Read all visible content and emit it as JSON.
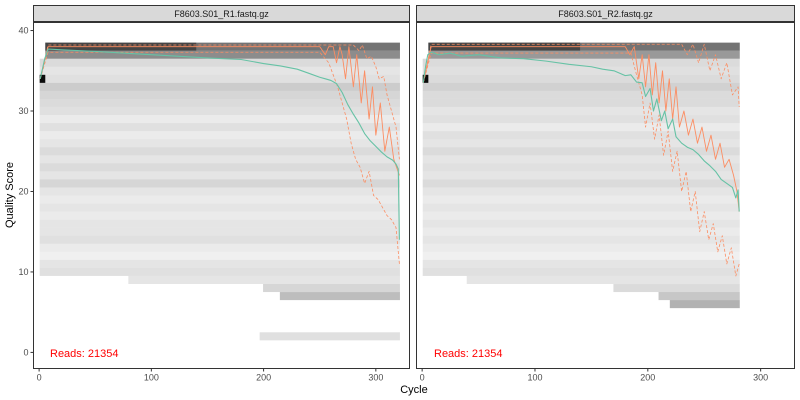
{
  "colors": {
    "strip_bg": "#d9d9d9",
    "strip_border": "#333333",
    "panel_border": "#333333",
    "mean_line": "#66c2a5",
    "quantile_line": "#fc8d62",
    "reads_text": "#ff0000",
    "heat_low": "#f4f4f4",
    "heat_high": "#000000"
  },
  "chart_data": {
    "type": "heatmap",
    "xlabel": "Cycle",
    "ylabel": "Quality Score",
    "xlim": [
      -5,
      330
    ],
    "ylim": [
      -2,
      41
    ],
    "xticks": [
      0,
      100,
      200,
      300
    ],
    "yticks": [
      0,
      10,
      20,
      30,
      40
    ],
    "panels": [
      {
        "title": "F8603.S01_R1.fastq.gz",
        "reads_label": "Reads:  21354",
        "read_length": 321,
        "mean": {
          "x": [
            1,
            5,
            8,
            20,
            50,
            100,
            150,
            180,
            200,
            215,
            230,
            240,
            250,
            255,
            260,
            265,
            270,
            275,
            280,
            285,
            290,
            295,
            300,
            305,
            310,
            315,
            318,
            320,
            321
          ],
          "y": [
            34,
            36.5,
            37.7,
            37.6,
            37.4,
            37.0,
            36.6,
            36.4,
            35.9,
            35.6,
            35.2,
            34.7,
            34.2,
            34.0,
            33.8,
            33.4,
            32.3,
            30.8,
            29.6,
            28.5,
            27.2,
            26.3,
            25.6,
            24.9,
            24.3,
            23.9,
            23.4,
            22.8,
            14
          ]
        },
        "median": {
          "x": [
            1,
            8,
            200,
            250,
            255,
            258,
            262,
            265,
            268,
            270,
            273,
            276,
            280,
            283,
            287,
            290,
            294,
            297,
            300,
            304,
            308,
            312,
            316,
            321
          ],
          "y": [
            34,
            38,
            38,
            38,
            37,
            38,
            38,
            36,
            38,
            37,
            34,
            38,
            33,
            37,
            31,
            35,
            29,
            33,
            27,
            31,
            25,
            28,
            24,
            22
          ]
        },
        "q25": {
          "x": [
            1,
            8,
            250,
            258,
            262,
            266,
            270,
            274,
            278,
            282,
            286,
            290,
            294,
            298,
            302,
            306,
            310,
            314,
            318,
            321
          ],
          "y": [
            34,
            37.3,
            37.3,
            36,
            34.5,
            33,
            31,
            29,
            26,
            24,
            23,
            21,
            22.5,
            19.5,
            19,
            18,
            17,
            16.5,
            15.5,
            11
          ]
        },
        "q75": {
          "x": [
            1,
            8,
            280,
            285,
            288,
            292,
            296,
            300,
            303,
            307,
            310,
            314,
            318,
            321
          ],
          "y": [
            34,
            38.2,
            38.2,
            37.5,
            38.2,
            36.5,
            36.8,
            35.5,
            34,
            34.3,
            32,
            30,
            28,
            24
          ]
        },
        "heat_cells": [
          {
            "q": 38,
            "x0": 6,
            "x1": 321,
            "a": 0.55
          },
          {
            "q": 37,
            "x0": 6,
            "x1": 321,
            "a": 0.45
          },
          {
            "q": 36,
            "x0": 1,
            "x1": 321,
            "a": 0.14
          },
          {
            "q": 35,
            "x0": 1,
            "x1": 321,
            "a": 0.1
          },
          {
            "q": 34,
            "x0": 1,
            "x1": 321,
            "a": 0.12
          },
          {
            "q": 33,
            "x0": 1,
            "x1": 321,
            "a": 0.2
          },
          {
            "q": 32,
            "x0": 1,
            "x1": 321,
            "a": 0.16
          },
          {
            "q": 31,
            "x0": 1,
            "x1": 321,
            "a": 0.14
          },
          {
            "q": 30,
            "x0": 1,
            "x1": 321,
            "a": 0.12
          },
          {
            "q": 29,
            "x0": 1,
            "x1": 321,
            "a": 0.08
          },
          {
            "q": 28,
            "x0": 1,
            "x1": 321,
            "a": 0.12
          },
          {
            "q": 27,
            "x0": 1,
            "x1": 321,
            "a": 0.08
          },
          {
            "q": 26,
            "x0": 1,
            "x1": 321,
            "a": 0.1
          },
          {
            "q": 25,
            "x0": 1,
            "x1": 321,
            "a": 0.14
          },
          {
            "q": 24,
            "x0": 1,
            "x1": 321,
            "a": 0.1
          },
          {
            "q": 23,
            "x0": 1,
            "x1": 321,
            "a": 0.14
          },
          {
            "q": 22,
            "x0": 1,
            "x1": 321,
            "a": 0.1
          },
          {
            "q": 21,
            "x0": 1,
            "x1": 321,
            "a": 0.16
          },
          {
            "q": 20,
            "x0": 1,
            "x1": 321,
            "a": 0.1
          },
          {
            "q": 19,
            "x0": 1,
            "x1": 321,
            "a": 0.08
          },
          {
            "q": 18,
            "x0": 1,
            "x1": 321,
            "a": 0.1
          },
          {
            "q": 17,
            "x0": 1,
            "x1": 321,
            "a": 0.08
          },
          {
            "q": 16,
            "x0": 1,
            "x1": 321,
            "a": 0.1
          },
          {
            "q": 15,
            "x0": 1,
            "x1": 321,
            "a": 0.1
          },
          {
            "q": 14,
            "x0": 1,
            "x1": 321,
            "a": 0.12
          },
          {
            "q": 13,
            "x0": 1,
            "x1": 321,
            "a": 0.08
          },
          {
            "q": 12,
            "x0": 1,
            "x1": 321,
            "a": 0.06
          },
          {
            "q": 11,
            "x0": 1,
            "x1": 321,
            "a": 0.1
          },
          {
            "q": 10,
            "x0": 1,
            "x1": 321,
            "a": 0.12
          },
          {
            "q": 9,
            "x0": 80,
            "x1": 321,
            "a": 0.1
          },
          {
            "q": 8,
            "x0": 200,
            "x1": 321,
            "a": 0.16
          },
          {
            "q": 7,
            "x0": 215,
            "x1": 321,
            "a": 0.26
          },
          {
            "q": 2,
            "x0": 197,
            "x1": 321,
            "a": 0.12
          }
        ]
      },
      {
        "title": "F8603.S01_R2.fastq.gz",
        "reads_label": "Reads:  21354",
        "read_length": 281,
        "mean": {
          "x": [
            1,
            3,
            5,
            8,
            15,
            25,
            35,
            50,
            70,
            90,
            110,
            130,
            150,
            160,
            170,
            180,
            185,
            190,
            195,
            198,
            202,
            205,
            208,
            212,
            215,
            218,
            222,
            225,
            230,
            235,
            240,
            245,
            250,
            255,
            260,
            265,
            270,
            275,
            278,
            280,
            281
          ],
          "y": [
            33.5,
            35.5,
            37.0,
            37.3,
            37.0,
            37.2,
            36.8,
            37.0,
            36.6,
            36.5,
            36.2,
            35.8,
            35.5,
            35.2,
            35.0,
            34.4,
            34.5,
            33.6,
            33.5,
            31.8,
            32.8,
            30.0,
            31.5,
            28.8,
            30.0,
            27.8,
            29.0,
            26.8,
            26.0,
            25.5,
            25.2,
            24.6,
            23.8,
            23.2,
            22.5,
            21.5,
            21.0,
            20.5,
            19.2,
            20.2,
            17.5
          ]
        },
        "median": {
          "x": [
            1,
            8,
            180,
            184,
            188,
            192,
            195,
            198,
            201,
            204,
            207,
            210,
            213,
            216,
            219,
            222,
            225,
            228,
            232,
            236,
            240,
            244,
            248,
            252,
            256,
            260,
            264,
            268,
            272,
            276,
            279,
            281
          ],
          "y": [
            33.5,
            38,
            38,
            37,
            38,
            34,
            37,
            33,
            37,
            32,
            36,
            31,
            35,
            30,
            34,
            29,
            33,
            28,
            30,
            27,
            29,
            26,
            28,
            25,
            27,
            24,
            26,
            23,
            24,
            22,
            20,
            17.5
          ]
        },
        "q25": {
          "x": [
            1,
            8,
            185,
            190,
            195,
            198,
            202,
            206,
            210,
            214,
            218,
            222,
            226,
            230,
            234,
            238,
            242,
            246,
            250,
            254,
            258,
            262,
            266,
            270,
            274,
            278,
            281
          ],
          "y": [
            33.5,
            37.2,
            37.2,
            34.5,
            32,
            28,
            31,
            26.5,
            29.5,
            24.5,
            27.5,
            22.5,
            25,
            20,
            22.5,
            17.5,
            20,
            15,
            17.5,
            14,
            16,
            12.5,
            14.5,
            11,
            13,
            9.5,
            11
          ]
        },
        "q75": {
          "x": [
            1,
            8,
            230,
            235,
            240,
            245,
            250,
            255,
            260,
            265,
            270,
            275,
            280,
            281
          ],
          "y": [
            33.5,
            38.3,
            38.3,
            37,
            38.3,
            36,
            38.3,
            35,
            37,
            34,
            36,
            32,
            33,
            30.5
          ]
        },
        "heat_cells": [
          {
            "q": 38,
            "x0": 6,
            "x1": 281,
            "a": 0.55
          },
          {
            "q": 37,
            "x0": 6,
            "x1": 281,
            "a": 0.4
          },
          {
            "q": 36,
            "x0": 1,
            "x1": 281,
            "a": 0.14
          },
          {
            "q": 35,
            "x0": 1,
            "x1": 281,
            "a": 0.12
          },
          {
            "q": 34,
            "x0": 1,
            "x1": 281,
            "a": 0.14
          },
          {
            "q": 33,
            "x0": 1,
            "x1": 281,
            "a": 0.18
          },
          {
            "q": 32,
            "x0": 1,
            "x1": 281,
            "a": 0.14
          },
          {
            "q": 31,
            "x0": 1,
            "x1": 281,
            "a": 0.14
          },
          {
            "q": 30,
            "x0": 1,
            "x1": 281,
            "a": 0.1
          },
          {
            "q": 29,
            "x0": 1,
            "x1": 281,
            "a": 0.12
          },
          {
            "q": 28,
            "x0": 1,
            "x1": 281,
            "a": 0.08
          },
          {
            "q": 27,
            "x0": 1,
            "x1": 281,
            "a": 0.12
          },
          {
            "q": 26,
            "x0": 1,
            "x1": 281,
            "a": 0.1
          },
          {
            "q": 25,
            "x0": 1,
            "x1": 281,
            "a": 0.14
          },
          {
            "q": 24,
            "x0": 1,
            "x1": 281,
            "a": 0.1
          },
          {
            "q": 23,
            "x0": 1,
            "x1": 281,
            "a": 0.12
          },
          {
            "q": 22,
            "x0": 1,
            "x1": 281,
            "a": 0.1
          },
          {
            "q": 21,
            "x0": 1,
            "x1": 281,
            "a": 0.14
          },
          {
            "q": 20,
            "x0": 1,
            "x1": 281,
            "a": 0.1
          },
          {
            "q": 19,
            "x0": 1,
            "x1": 281,
            "a": 0.08
          },
          {
            "q": 18,
            "x0": 1,
            "x1": 281,
            "a": 0.1
          },
          {
            "q": 17,
            "x0": 1,
            "x1": 281,
            "a": 0.08
          },
          {
            "q": 16,
            "x0": 1,
            "x1": 281,
            "a": 0.1
          },
          {
            "q": 15,
            "x0": 1,
            "x1": 281,
            "a": 0.08
          },
          {
            "q": 14,
            "x0": 1,
            "x1": 281,
            "a": 0.1
          },
          {
            "q": 13,
            "x0": 1,
            "x1": 281,
            "a": 0.08
          },
          {
            "q": 12,
            "x0": 1,
            "x1": 281,
            "a": 0.06
          },
          {
            "q": 11,
            "x0": 1,
            "x1": 281,
            "a": 0.1
          },
          {
            "q": 10,
            "x0": 1,
            "x1": 281,
            "a": 0.12
          },
          {
            "q": 9,
            "x0": 40,
            "x1": 281,
            "a": 0.1
          },
          {
            "q": 8,
            "x0": 170,
            "x1": 281,
            "a": 0.14
          },
          {
            "q": 7,
            "x0": 210,
            "x1": 281,
            "a": 0.22
          },
          {
            "q": 6,
            "x0": 220,
            "x1": 281,
            "a": 0.3
          }
        ]
      }
    ]
  }
}
